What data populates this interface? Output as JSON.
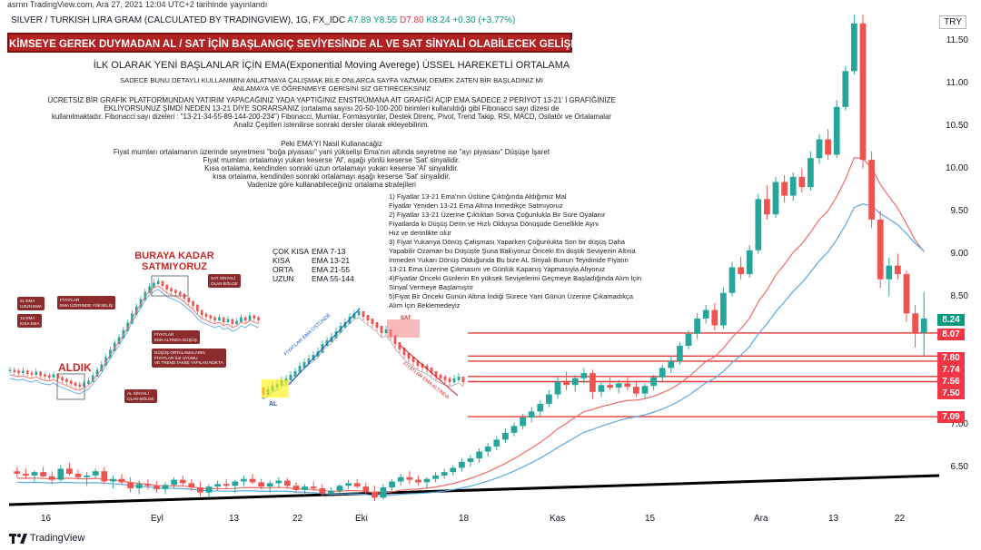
{
  "header": {
    "top_line": "asrnn TradingView.com, Ara 27, 2021 12:04 UTC+2 tarihinde yayınlandı",
    "symbol": "SILVER / TURKISH LIRA GRAM (CALCULATED BY TRADINGVIEW), 1G, FX_IDC",
    "open": "A7.89",
    "high": "Y8.55",
    "low": "D7.80",
    "close": "K8.24",
    "change": "+0.30 (+3.77%)",
    "currency": "TRY"
  },
  "banner": "KİMSEYE GEREK DUYMADAN AL / SAT İÇİN BAŞLANGIÇ SEVİYESİNDE AL VE SAT SİNYALİ OLABİLECEK GELİŞMELER",
  "text": {
    "title": "İLK OLARAK YENİ BAŞLANLAR İÇİN EMA(Exponential Moving Averege) ÜSSEL HAREKETLİ ORTALAMA",
    "p1a": "SADECE BUNU DETAYLI KULLANIMINI ANLATMAYA ÇALIŞMAK BİLE ONLARCA SAYFA YAZMAK DEMEK ZATEN BİR BAŞLADINIZ MI",
    "p1b": "ANLAMAYA VE ÖĞRENMEYE GERİSİNİ SİZ GETİRECEKSİNİZ",
    "p2a": "ÜCRETSİZ  BİR GRAFİK PLATFORMUNDAN YATIRIM YAPACAĞINIZ YADA YAPTIĞINIZ ENSTRÜMANA AİT GRAFİĞİ AÇIP EMA SADECE 2 PERİYOT 13-21' İ GRAFİĞİNİZE",
    "p2b": "EKLİYORSUNUZ ŞİMDİ NEDEN 13-21 DİYE SORARSANIZ (ortalama sayısı 20-50-100-200 birimleri kullanıldığı gibi Fibonacci sayı dizesi de",
    "p2c": "kullanılmaktadır. Fibonacci sayı dizeleri : \"13-21-34-55-89-144-200-234\") Fibonacci, Mumlar, Formasyonlar, Destek Direnç, Pivot, Trend Takip, RSI, MACD, Osilatör ve Ortalamalar",
    "p2d": "Analiz Çeşitleri istenilirse sonraki dersler olarak ekleyebilirim.",
    "p3": "Peki EMA'YI Nasil Kullanacağiz",
    "p4": "Fiyat mumları ortalamanın üzerinde seyretmesi \"boğa piyasası\" yani yükselişi Ema'nın altında seyretme ise \"ayı piyasası\" Düşüşe İşaret",
    "p5": "Fiyat mumları ortalamayı yukarı keserse 'Al', aşağı yönlü keserse 'Sat' sinyalidir.",
    "p6": "Kısa ortalama, kendinden sonraki uzun ortalamayı yukarı keserse 'Al' sinyalidir.",
    "p7": "kısa ortalama, kendinden sonraki ortalamayı aşağı keserse 'Sat' sinyalidir.",
    "p8": "Vadenize göre kullanabileceğiniz  ortalama stratejileri"
  },
  "ema_table": {
    "rows": [
      {
        "name": "ÇOK KISA",
        "value": "EMA 7-13"
      },
      {
        "name": "KISA",
        "value": "EMA 13-21"
      },
      {
        "name": "ORTA",
        "value": "EMA 21-55"
      },
      {
        "name": "UZUN",
        "value": "EMA 55-144"
      }
    ]
  },
  "notes": "1) Fiyatlar 13-21 Ema'nın Üstüne Çıktığında Aldığımız Mal\nFiyatlar Yeniden 13-21 Ema Altına İnmedikçe Satmıyoruz\n2) Fiyatlar 13-21 Üzerine Çıktıktan Sonra Çoğunlukla Bir Süre Oyalanır\nFiyatlarda ki Düşüş Derin ve Hızlı Olduysa Dönüşüde Genellikle Aynı\nHız ve derinlikte olur\n3) Fiyat Yukarıya Dönüş Çalışması Yaparken Çoğunlukta Son bir düşüş Daha\nYapabilir Ozaman bu Düşüşte Şuna Bakıyoruz Önceki En düşük Seviyenin Altına\nİnmeden Yukarı Dönüş Olduğunda Bu bize AL Sinyali Bunun Teyidinide Fiyatın\n13-21 Ema Üzerine Çıkmasını ve Günlük Kapanış Yapmasıyla Alıyoruz\n4)Fiyatlar Önceki Günlerin En yüksek Seviyelerini Geçmeye Başladığında Alım İçin\nSinyal Vermeye Başlamıştır\n5)Fiyat Bir Önceki Günün Altına İndiği Sürece Yani Günün Üzerine Çıkamadıkça\nAlım İçin Beklemedeyiz",
  "inset": {
    "label_top": "BURAYA KADAR\nSATMIYORUZ",
    "label_buy": "ALDIK",
    "callouts": [
      "21 EMA\nUZUN EMA",
      "13 EMA\nKISA EMA",
      "FİYATLAR\nEMA ÜZERİNDE YÜKSELİŞ",
      "SAT SİNYALİ\nOLAN BÖLGE",
      "FİYATLAR\nEMA ALTINDA DÜŞÜŞ",
      "DÜŞÜŞ ORTALAMALARIN\nFİYATLAR İLE UYUMU\nVE TREND TAKİBİ YAPILAN NOKTA",
      "AL SİNYALİ\nOLAN BÖLGE"
    ]
  },
  "mini_chart": {
    "label_al": "AL",
    "label_sat": "SAT",
    "label_up": "FİYATLAR EMA ÜSTÜNDE",
    "label_down": "FİYATLAR EMA ALTINDA"
  },
  "price_axis": [
    "11.50",
    "11.00",
    "10.50",
    "10.00",
    "9.50",
    "9.00",
    "8.50",
    "7.00",
    "6.50"
  ],
  "price_tags": [
    {
      "label": "8.24",
      "color": "#089981"
    },
    {
      "label": "8.07",
      "color": "#f23645"
    },
    {
      "label": "7.80",
      "color": "#f23645"
    },
    {
      "label": "7.74",
      "color": "#f23645"
    },
    {
      "label": "7.56",
      "color": "#f23645"
    },
    {
      "label": "7.50",
      "color": "#f23645"
    },
    {
      "label": "7.09",
      "color": "#f23645"
    }
  ],
  "date_axis": [
    "16",
    "Eyl",
    "13",
    "22",
    "Eki",
    "18",
    "Kas",
    "15",
    "Ara",
    "13",
    "22"
  ],
  "footer": "TradingView",
  "chart_data": {
    "type": "candlestick",
    "symbol": "SILVER / TURKISH LIRA GRAM",
    "timeframe": "1G",
    "candles": [
      [
        6.45,
        6.5,
        6.38,
        6.42
      ],
      [
        6.42,
        6.48,
        6.36,
        6.4
      ],
      [
        6.4,
        6.46,
        6.33,
        6.44
      ],
      [
        6.44,
        6.5,
        6.38,
        6.39
      ],
      [
        6.39,
        6.45,
        6.3,
        6.35
      ],
      [
        6.35,
        6.52,
        6.33,
        6.48
      ],
      [
        6.48,
        6.55,
        6.4,
        6.42
      ],
      [
        6.42,
        6.47,
        6.35,
        6.38
      ],
      [
        6.38,
        6.44,
        6.28,
        6.4
      ],
      [
        6.4,
        6.48,
        6.36,
        6.45
      ],
      [
        6.45,
        6.5,
        6.3,
        6.33
      ],
      [
        6.33,
        6.4,
        6.25,
        6.36
      ],
      [
        6.36,
        6.42,
        6.3,
        6.32
      ],
      [
        6.32,
        6.38,
        6.2,
        6.25
      ],
      [
        6.25,
        6.34,
        6.18,
        6.3
      ],
      [
        6.3,
        6.36,
        6.24,
        6.28
      ],
      [
        6.28,
        6.33,
        6.2,
        6.24
      ],
      [
        6.24,
        6.32,
        6.18,
        6.29
      ],
      [
        6.29,
        6.38,
        6.25,
        6.35
      ],
      [
        6.35,
        6.4,
        6.28,
        6.31
      ],
      [
        6.31,
        6.36,
        6.22,
        6.26
      ],
      [
        6.26,
        6.33,
        6.15,
        6.2
      ],
      [
        6.2,
        6.3,
        6.14,
        6.27
      ],
      [
        6.27,
        6.34,
        6.22,
        6.3
      ],
      [
        6.3,
        6.36,
        6.24,
        6.28
      ],
      [
        6.28,
        6.35,
        6.2,
        6.33
      ],
      [
        6.33,
        6.4,
        6.28,
        6.36
      ],
      [
        6.36,
        6.42,
        6.3,
        6.32
      ],
      [
        6.32,
        6.36,
        6.24,
        6.27
      ],
      [
        6.27,
        6.34,
        6.2,
        6.31
      ],
      [
        6.31,
        6.38,
        6.26,
        6.34
      ],
      [
        6.34,
        6.37,
        6.25,
        6.28
      ],
      [
        6.28,
        6.32,
        6.2,
        6.23
      ],
      [
        6.23,
        6.3,
        6.17,
        6.27
      ],
      [
        6.27,
        6.33,
        6.22,
        6.25
      ],
      [
        6.25,
        6.3,
        6.16,
        6.19
      ],
      [
        6.19,
        6.26,
        6.15,
        6.22
      ],
      [
        6.22,
        6.3,
        6.18,
        6.28
      ],
      [
        6.28,
        6.35,
        6.24,
        6.31
      ],
      [
        6.31,
        6.36,
        6.25,
        6.27
      ],
      [
        6.27,
        6.32,
        6.18,
        6.21
      ],
      [
        6.21,
        6.28,
        6.1,
        6.14
      ],
      [
        6.14,
        6.3,
        6.12,
        6.26
      ],
      [
        6.26,
        6.36,
        6.22,
        6.33
      ],
      [
        6.33,
        6.42,
        6.28,
        6.38
      ],
      [
        6.38,
        6.45,
        6.3,
        6.35
      ],
      [
        6.35,
        6.4,
        6.28,
        6.32
      ],
      [
        6.32,
        6.38,
        6.25,
        6.36
      ],
      [
        6.36,
        6.44,
        6.32,
        6.4
      ],
      [
        6.4,
        6.48,
        6.36,
        6.44
      ],
      [
        6.44,
        6.52,
        6.4,
        6.49
      ],
      [
        6.49,
        6.6,
        6.45,
        6.56
      ],
      [
        6.56,
        6.64,
        6.5,
        6.6
      ],
      [
        6.6,
        6.72,
        6.55,
        6.68
      ],
      [
        6.68,
        6.78,
        6.62,
        6.74
      ],
      [
        6.74,
        6.86,
        6.7,
        6.82
      ],
      [
        6.82,
        6.95,
        6.78,
        6.9
      ],
      [
        6.9,
        7.02,
        6.86,
        6.98
      ],
      [
        6.98,
        7.12,
        6.94,
        7.08
      ],
      [
        7.08,
        7.2,
        7.02,
        7.15
      ],
      [
        7.15,
        7.28,
        7.1,
        7.24
      ],
      [
        7.24,
        7.4,
        7.2,
        7.35
      ],
      [
        7.35,
        7.56,
        7.3,
        7.5
      ],
      [
        7.5,
        7.62,
        7.4,
        7.46
      ],
      [
        7.46,
        7.58,
        7.38,
        7.54
      ],
      [
        7.54,
        7.66,
        7.48,
        7.6
      ],
      [
        7.6,
        7.64,
        7.3,
        7.38
      ],
      [
        7.38,
        7.5,
        7.32,
        7.46
      ],
      [
        7.46,
        7.55,
        7.4,
        7.43
      ],
      [
        7.43,
        7.52,
        7.36,
        7.48
      ],
      [
        7.48,
        7.56,
        7.4,
        7.44
      ],
      [
        7.44,
        7.5,
        7.32,
        7.36
      ],
      [
        7.36,
        7.48,
        7.3,
        7.45
      ],
      [
        7.45,
        7.58,
        7.4,
        7.55
      ],
      [
        7.55,
        7.7,
        7.5,
        7.66
      ],
      [
        7.66,
        7.8,
        7.6,
        7.74
      ],
      [
        7.74,
        7.96,
        7.7,
        7.92
      ],
      [
        7.92,
        8.1,
        7.88,
        8.06
      ],
      [
        8.06,
        8.3,
        8.0,
        8.24
      ],
      [
        8.24,
        8.4,
        8.18,
        8.34
      ],
      [
        8.34,
        8.42,
        8.1,
        8.16
      ],
      [
        8.16,
        8.6,
        8.12,
        8.54
      ],
      [
        8.54,
        8.9,
        8.5,
        8.84
      ],
      [
        8.84,
        8.96,
        8.7,
        8.76
      ],
      [
        8.76,
        9.1,
        8.72,
        9.04
      ],
      [
        9.04,
        9.7,
        9.0,
        9.64
      ],
      [
        9.64,
        9.8,
        9.4,
        9.46
      ],
      [
        9.46,
        9.9,
        9.42,
        9.84
      ],
      [
        9.84,
        9.92,
        9.6,
        9.68
      ],
      [
        9.68,
        9.95,
        9.62,
        9.9
      ],
      [
        9.9,
        10.0,
        9.72,
        9.78
      ],
      [
        9.78,
        10.2,
        9.74,
        10.12
      ],
      [
        10.12,
        10.4,
        10.05,
        10.34
      ],
      [
        10.34,
        10.46,
        10.1,
        10.16
      ],
      [
        10.16,
        10.8,
        10.12,
        10.72
      ],
      [
        10.72,
        11.2,
        10.68,
        11.14
      ],
      [
        11.14,
        11.8,
        11.1,
        11.7
      ],
      [
        11.7,
        11.8,
        10.0,
        10.1
      ],
      [
        10.1,
        10.2,
        9.3,
        9.4
      ],
      [
        9.4,
        9.5,
        8.6,
        8.7
      ],
      [
        8.7,
        8.95,
        8.5,
        8.86
      ],
      [
        8.86,
        9.0,
        8.7,
        8.76
      ],
      [
        8.76,
        8.8,
        8.2,
        8.3
      ],
      [
        8.3,
        8.4,
        7.9,
        8.07
      ],
      [
        8.07,
        8.55,
        7.8,
        8.24
      ]
    ],
    "horizontal_levels": [
      8.07,
      7.8,
      7.74,
      7.56,
      7.5,
      7.09
    ],
    "series_ema13_desc": "red moving average",
    "series_ema21_desc": "blue moving average",
    "y_axis_ticks": [
      6.5,
      7.0,
      8.5,
      9.0,
      9.5,
      10.0,
      10.5,
      11.0,
      11.5
    ],
    "x_axis_ticks": [
      "16",
      "Eyl",
      "13",
      "22",
      "Eki",
      "18",
      "Kas",
      "15",
      "Ara",
      "13",
      "22"
    ],
    "last_price": 8.24,
    "up_color": "#26a69a",
    "down_color": "#ef5350"
  }
}
